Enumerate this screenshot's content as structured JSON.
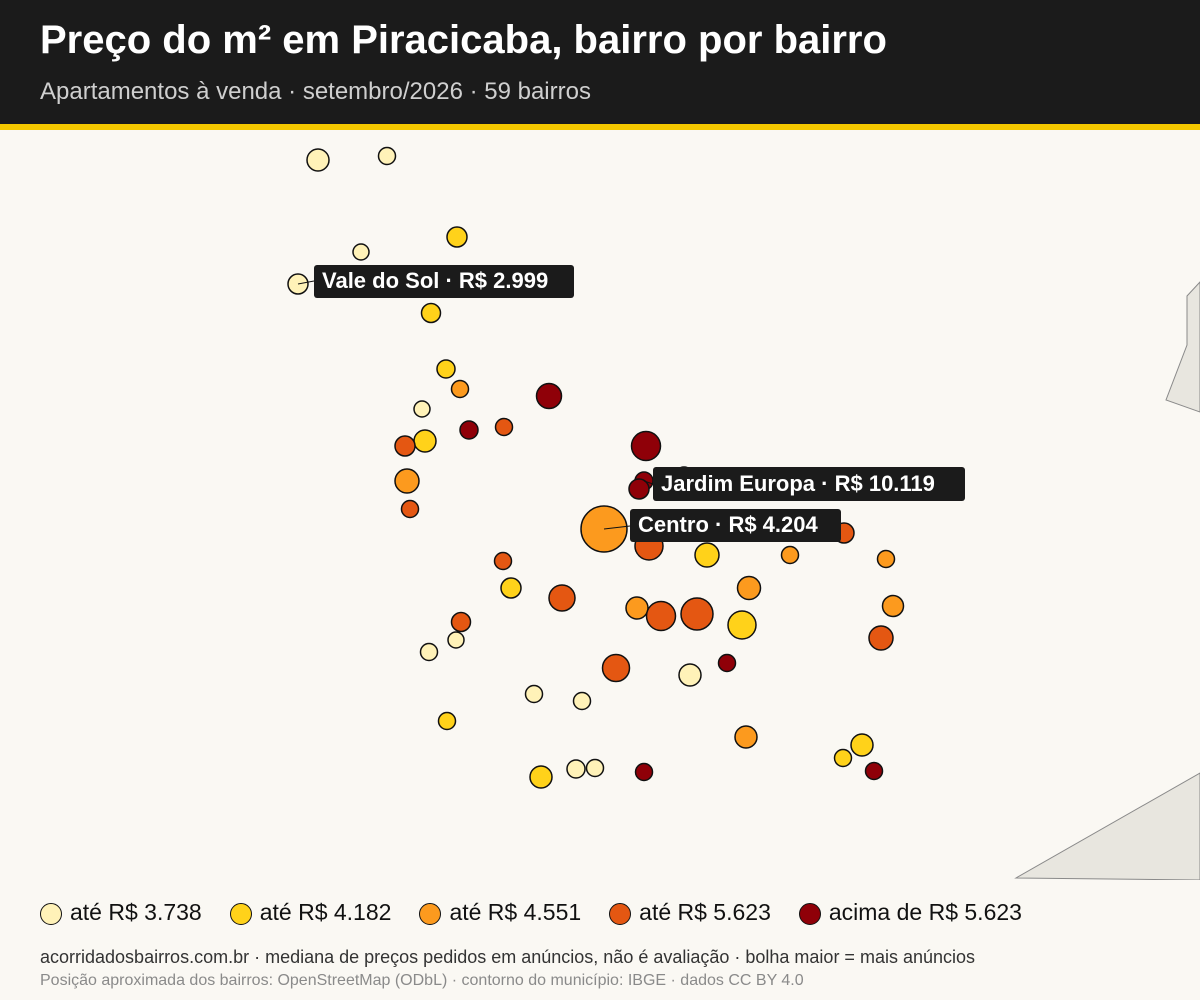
{
  "header": {
    "title": "Preço do m² em Piracicaba, bairro por bairro",
    "subtitle": "Apartamentos à venda · setembro/2026 · 59 bairros"
  },
  "colors": {
    "header_bg": "#1b1b1b",
    "accent": "#f5c800",
    "bucket_1": "#fff2b8",
    "bucket_2": "#ffd21a",
    "bucket_3": "#fc9a1e",
    "bucket_4": "#e45712",
    "bucket_5": "#8f0008",
    "neighbor_area": "#e8e6df"
  },
  "map": {
    "callouts": [
      {
        "label": "Vale do Sol · R$ 2.999"
      },
      {
        "label": "Jardim Europa · R$ 10.119"
      },
      {
        "label": "Centro · R$ 4.204"
      }
    ]
  },
  "legend": {
    "items": [
      {
        "label": "até R$ 3.738",
        "color": "#fff2b8"
      },
      {
        "label": "até R$ 4.182",
        "color": "#ffd21a"
      },
      {
        "label": "até R$ 4.551",
        "color": "#fc9a1e"
      },
      {
        "label": "até R$ 5.623",
        "color": "#e45712"
      },
      {
        "label": "acima de R$ 5.623",
        "color": "#8f0008"
      }
    ]
  },
  "footer": {
    "line1": "acorridadosbairros.com.br · mediana de preços pedidos em anúncios, não é avaliação · bolha maior = mais anúncios",
    "line2": "Posição aproximada dos bairros: OpenStreetMap (ODbL) · contorno do município: IBGE · dados CC BY 4.0"
  }
}
